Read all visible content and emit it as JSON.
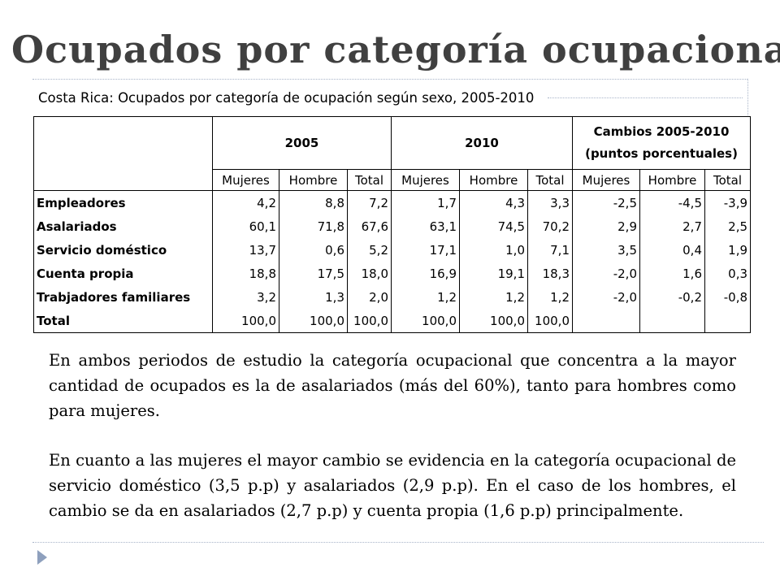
{
  "slide": {
    "title": "Ocupados por categoría ocupacional"
  },
  "table": {
    "caption": "Costa Rica: Ocupados por categoría de ocupación según sexo, 2005-2010",
    "groups": [
      "2005",
      "2010"
    ],
    "changes_header": {
      "line1": "Cambios 2005-2010",
      "line2": "(puntos porcentuales)"
    },
    "subheaders": [
      "Mujeres",
      "Hombre",
      "Total",
      "Mujeres",
      "Hombre",
      "Total",
      "Mujeres",
      "Hombre",
      "Total"
    ],
    "rows": [
      {
        "label": "Empleadores",
        "values": [
          "4,2",
          "8,8",
          "7,2",
          "1,7",
          "4,3",
          "3,3",
          "-2,5",
          "-4,5",
          "-3,9"
        ]
      },
      {
        "label": "Asalariados",
        "values": [
          "60,1",
          "71,8",
          "67,6",
          "63,1",
          "74,5",
          "70,2",
          "2,9",
          "2,7",
          "2,5"
        ]
      },
      {
        "label": "Servicio doméstico",
        "values": [
          "13,7",
          "0,6",
          "5,2",
          "17,1",
          "1,0",
          "7,1",
          "3,5",
          "0,4",
          "1,9"
        ]
      },
      {
        "label": "Cuenta propia",
        "values": [
          "18,8",
          "17,5",
          "18,0",
          "16,9",
          "19,1",
          "18,3",
          "-2,0",
          "1,6",
          "0,3"
        ]
      },
      {
        "label": "Trabjadores familiares",
        "values": [
          "3,2",
          "1,3",
          "2,0",
          "1,2",
          "1,2",
          "1,2",
          "-2,0",
          "-0,2",
          "-0,8"
        ]
      },
      {
        "label": "Total",
        "values": [
          "100,0",
          "100,0",
          "100,0",
          "100,0",
          "100,0",
          "100,0",
          "",
          "",
          ""
        ]
      }
    ]
  },
  "text": {
    "paragraph1": "En ambos periodos de estudio la categoría ocupacional que concentra a la mayor cantidad de ocupados es la de asalariados (más del 60%), tanto para hombres como para mujeres.",
    "paragraph2": "En cuanto a las mujeres el mayor cambio se evidencia en la categoría ocupacional de servicio doméstico (3,5 p.p) y asalariados (2,9 p.p). En el caso de los hombres, el cambio se da en asalariados (2,7 p.p) y cuenta propia (1,6 p.p) principalmente."
  },
  "icons": {
    "bullet": "triangle-bullet-icon"
  },
  "colors": {
    "title": "#404040",
    "accent": "#8ea0bd"
  }
}
